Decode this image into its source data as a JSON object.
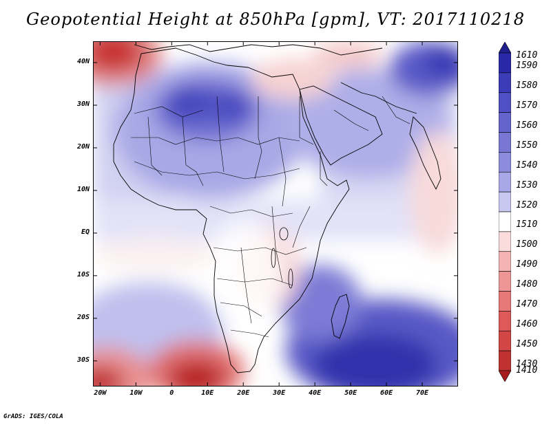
{
  "title": "Geopotential Height at 850hPa [gpm], VT: 2017110218",
  "footer": "GrADS: IGES/COLA",
  "axes": {
    "lat_labels": [
      "40N",
      "30N",
      "20N",
      "10N",
      "EQ",
      "10S",
      "20S",
      "30S"
    ],
    "lat_values": [
      40,
      30,
      20,
      10,
      0,
      -10,
      -20,
      -30
    ],
    "lon_labels": [
      "20W",
      "10W",
      "0",
      "10E",
      "20E",
      "30E",
      "40E",
      "50E",
      "60E",
      "70E"
    ],
    "lon_values": [
      -20,
      -10,
      0,
      10,
      20,
      30,
      40,
      50,
      60,
      70
    ],
    "lon_range": [
      -22,
      80
    ],
    "lat_range": [
      -36,
      45
    ]
  },
  "colorbar": {
    "levels": [
      "1610",
      "1590",
      "1580",
      "1570",
      "1560",
      "1550",
      "1540",
      "1530",
      "1520",
      "1510",
      "1500",
      "1490",
      "1480",
      "1470",
      "1460",
      "1450",
      "1430",
      "1410"
    ],
    "colors": [
      "#1e1e8c",
      "#2828a8",
      "#3c3cb8",
      "#5050c4",
      "#6464cc",
      "#7878d4",
      "#8c8cdc",
      "#a8a8e6",
      "#c8c8f0",
      "#ffffff",
      "#fadcdc",
      "#f5b4b4",
      "#ee9696",
      "#e67878",
      "#de5a5a",
      "#d24646",
      "#c03232",
      "#a81e1e"
    ]
  }
}
